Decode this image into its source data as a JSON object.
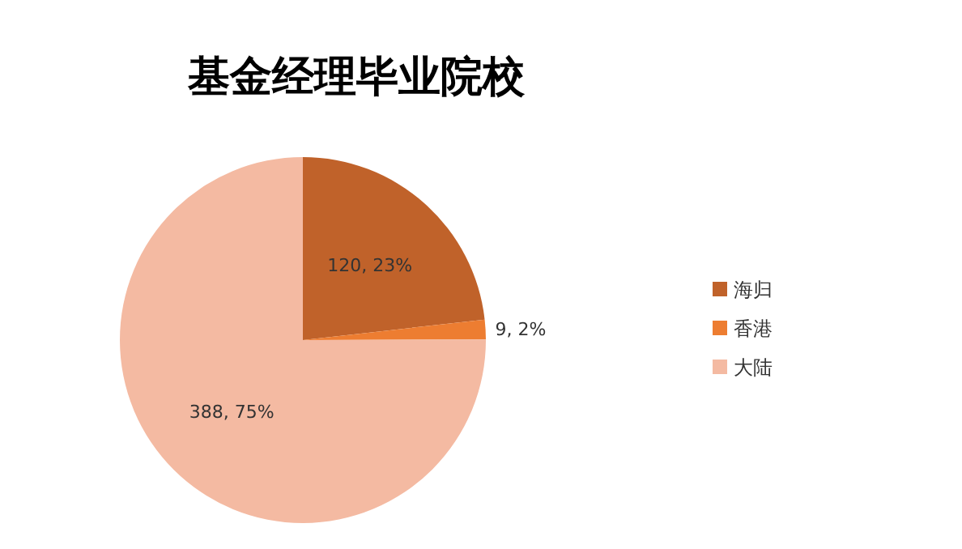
{
  "chart_data": {
    "type": "pie",
    "title": "基金经理毕业院校",
    "categories": [
      "海归",
      "香港",
      "大陆"
    ],
    "values": [
      120,
      9,
      388
    ],
    "value_labels": [
      "120, 23%",
      "9, 2%",
      "388, 75%"
    ],
    "colors": [
      "#c0622a",
      "#ed7d31",
      "#f4baa2"
    ],
    "legend": "right"
  }
}
